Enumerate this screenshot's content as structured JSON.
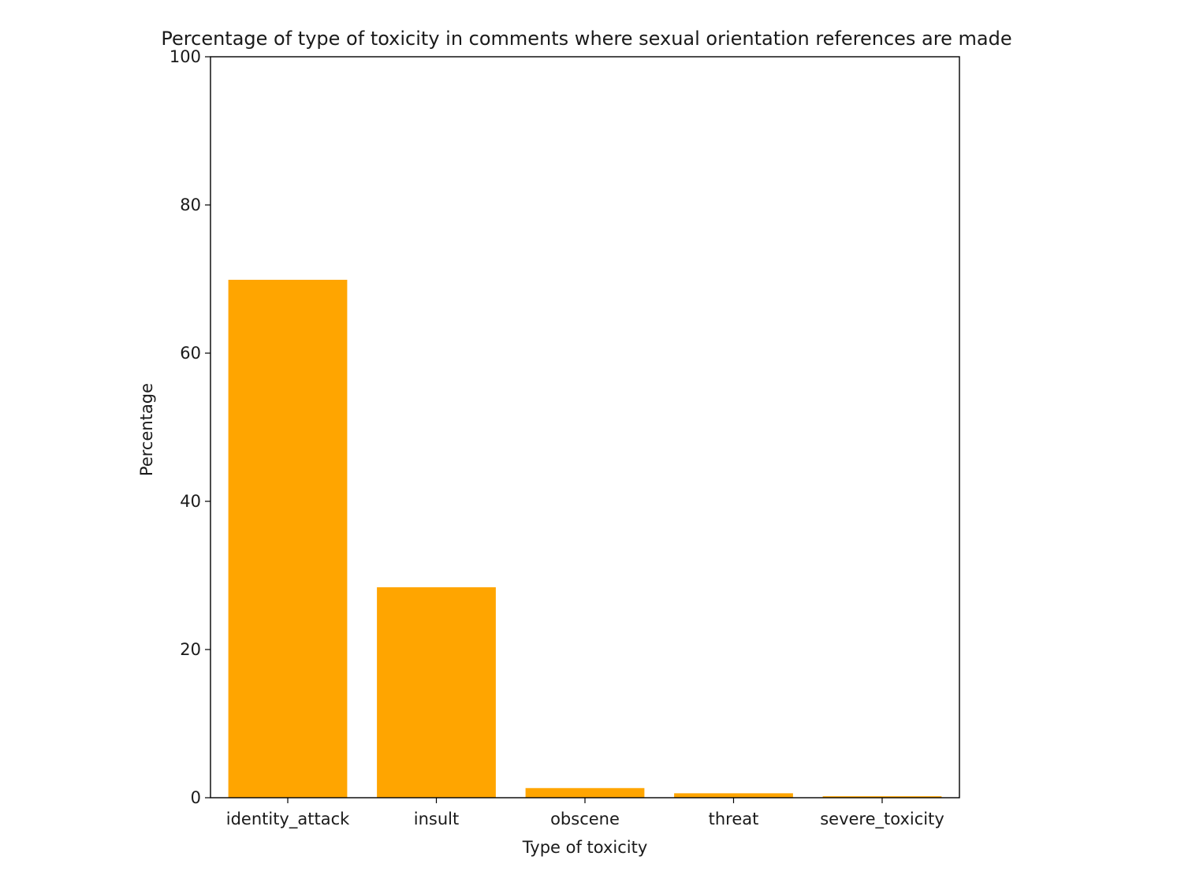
{
  "chart_data": {
    "type": "bar",
    "title": "Percentage of type of toxicity in comments where sexual orientation references are made",
    "xlabel": "Type of toxicity",
    "ylabel": "Percentage",
    "categories": [
      "identity_attack",
      "insult",
      "obscene",
      "threat",
      "severe_toxicity"
    ],
    "values": [
      69.9,
      28.4,
      1.3,
      0.6,
      0.2
    ],
    "ylim": [
      0,
      100
    ],
    "yticks": [
      0,
      20,
      40,
      60,
      80,
      100
    ],
    "bar_color": "#FFA500",
    "grid": false,
    "legend": "none"
  }
}
